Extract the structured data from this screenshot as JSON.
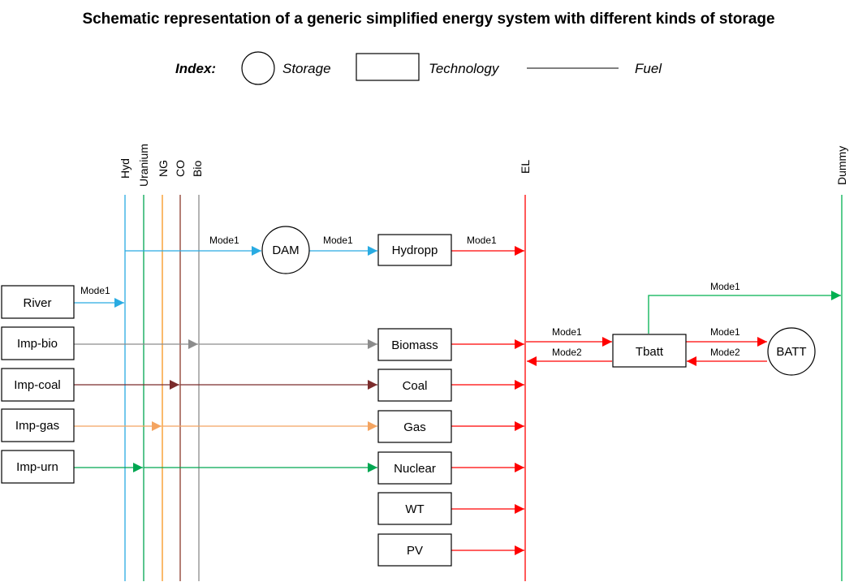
{
  "title": "Schematic representation of a generic simplified energy system with different kinds of storage",
  "index": {
    "heading": "Index:",
    "storage": "Storage",
    "technology": "Technology",
    "fuel": "Fuel"
  },
  "colors": {
    "hyd": "#29abe2",
    "uranium": "#00a651",
    "ng": "#f7941d",
    "co": "#8b3a2b",
    "bio": "#8c8c8c",
    "el": "#ff0000",
    "dummy": "#00b050",
    "imp_bio": "#8c8c8c",
    "imp_coal": "#7b2c2c",
    "imp_gas": "#f4a460",
    "imp_urn": "#00a651"
  },
  "fuels": {
    "hyd": "Hyd",
    "uranium": "Uranium",
    "ng": "NG",
    "co": "CO",
    "bio": "Bio",
    "el": "EL",
    "dummy": "Dummy"
  },
  "import_technologies": {
    "river": "River",
    "imp_bio": "Imp-bio",
    "imp_coal": "Imp-coal",
    "imp_gas": "Imp-gas",
    "imp_urn": "Imp-urn"
  },
  "power_technologies": {
    "hydropp": "Hydropp",
    "biomass": "Biomass",
    "coal": "Coal",
    "gas": "Gas",
    "nuclear": "Nuclear",
    "wt": "WT",
    "pv": "PV"
  },
  "storages": {
    "dam": "DAM",
    "batt": "BATT"
  },
  "battery_technology": "Tbatt",
  "modes": {
    "mode1": "Mode1",
    "mode2": "Mode2"
  }
}
